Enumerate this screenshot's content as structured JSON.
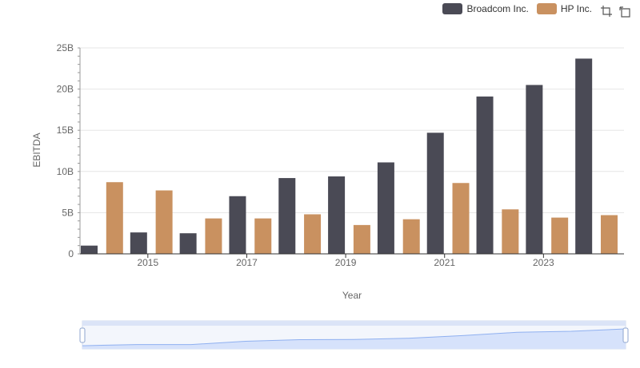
{
  "legend": {
    "items": [
      {
        "label": "Broadcom Inc.",
        "color": "#4a4a55"
      },
      {
        "label": "HP Inc.",
        "color": "#c99160"
      }
    ]
  },
  "toolbox": {
    "icons": [
      "zoom-icon",
      "zoom-reset-icon"
    ]
  },
  "chart_data": {
    "type": "bar",
    "categories": [
      "2014",
      "2015",
      "2016",
      "2017",
      "2018",
      "2019",
      "2020",
      "2021",
      "2022",
      "2023",
      "2024"
    ],
    "x_tick_labels": [
      "2015",
      "2017",
      "2019",
      "2021",
      "2023"
    ],
    "series": [
      {
        "name": "Broadcom Inc.",
        "color": "#4a4a55",
        "values": [
          1.0,
          2.6,
          2.5,
          7.0,
          9.2,
          9.4,
          11.1,
          14.7,
          19.1,
          20.5,
          23.7
        ]
      },
      {
        "name": "HP Inc.",
        "color": "#c99160",
        "values": [
          8.7,
          7.7,
          4.3,
          4.3,
          4.8,
          3.5,
          4.2,
          8.6,
          5.4,
          4.4,
          4.7
        ]
      }
    ],
    "xlabel": "Year",
    "ylabel": "EBITDA",
    "ylim": [
      0,
      25
    ],
    "y_ticks": [
      0,
      5,
      10,
      15,
      20,
      25
    ],
    "y_tick_labels": [
      "0",
      "5B",
      "10B",
      "15B",
      "20B",
      "25B"
    ],
    "grid": true,
    "legend_position": "top-right",
    "data_zoom": {
      "start": 0,
      "end": 100
    }
  }
}
